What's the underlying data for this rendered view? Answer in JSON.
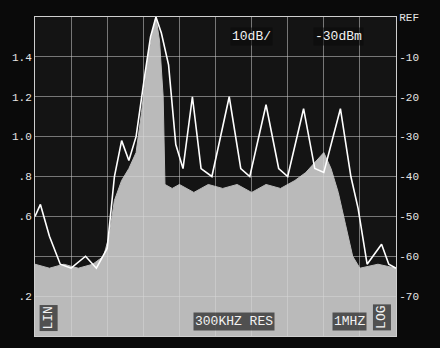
{
  "chart_data": {
    "type": "line",
    "annotations": [
      "10dB/",
      "-30dBm",
      "300KHZ RES",
      "1MHZ",
      "LIN",
      "LOG"
    ],
    "xlim": [
      -5,
      5
    ],
    "xticks": [
      -5,
      -4,
      -3,
      -2,
      -1,
      0,
      1,
      2,
      3,
      4,
      5
    ],
    "ylim": [
      0,
      1.6
    ],
    "yticks": [
      {
        "value": 0.2,
        "label": ".2"
      },
      {
        "value": 0.6,
        "label": ".6"
      },
      {
        "value": 0.8,
        "label": ".8"
      },
      {
        "value": 1,
        "label": "1.0"
      },
      1.2,
      1.4
    ],
    "y2lim": [
      -80,
      0
    ],
    "y2ticks": [
      {
        "value": 0,
        "label": "REF"
      },
      -10,
      -20,
      -30,
      -40,
      -50,
      -60,
      -70
    ],
    "grid": true,
    "tick_labels": "y",
    "series": [
      {
        "type": "area",
        "axis": "y2",
        "color": "#d8d8d8",
        "x": [
          -5,
          -4.6,
          -4.2,
          -3.8,
          -3.4,
          -3.1,
          -2.95,
          -2.8,
          -2.6,
          -2.4,
          -2.2,
          -2.05,
          -1.9,
          -1.75,
          -1.65,
          -1.55,
          -1.45,
          -1.4,
          -1.2,
          -1.0,
          -0.6,
          -0.2,
          0.2,
          0.6,
          1.0,
          1.4,
          1.8,
          2.2,
          2.5,
          2.8,
          3.0,
          3.2,
          3.4,
          3.6,
          3.8,
          4.0,
          4.5,
          5
        ],
        "values": [
          -62,
          -63,
          -62,
          -63,
          -62,
          -60,
          -55,
          -46,
          -41,
          -38,
          -34,
          -24,
          -12,
          -4,
          0,
          -6,
          -20,
          -42,
          -43,
          -42,
          -44,
          -42,
          -43,
          -42,
          -44,
          -42,
          -43,
          -41,
          -39,
          -36,
          -34,
          -38,
          -44,
          -52,
          -60,
          -63,
          -62,
          -63
        ]
      },
      {
        "type": "line",
        "axis": "y2",
        "color": "#ffffff",
        "x": [
          -5,
          -4.85,
          -4.6,
          -4.3,
          -4.0,
          -3.6,
          -3.3,
          -3.0,
          -2.8,
          -2.6,
          -2.4,
          -2.2,
          -1.95,
          -1.8,
          -1.65,
          -1.5,
          -1.3,
          -1.1,
          -0.9,
          -0.64,
          -0.4,
          -0.1,
          0.38,
          0.7,
          0.95,
          1.4,
          1.75,
          2.0,
          2.44,
          2.75,
          3.0,
          3.46,
          3.75,
          3.95,
          4.2,
          4.6,
          4.8,
          5
        ],
        "values": [
          -50,
          -47,
          -55,
          -62,
          -63,
          -60,
          -63,
          -58,
          -40,
          -31,
          -36,
          -30,
          -14,
          -5,
          0,
          -4,
          -12,
          -32,
          -38,
          -20,
          -38,
          -40,
          -20,
          -38,
          -40,
          -22,
          -38,
          -40,
          -23,
          -38,
          -39,
          -23,
          -40,
          -48,
          -62,
          -57,
          -62,
          -63
        ]
      }
    ]
  }
}
